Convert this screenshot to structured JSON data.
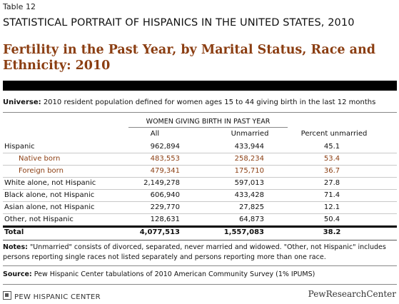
{
  "header": {
    "table_number": "Table 12",
    "super_title": "STATISTICAL PORTRAIT OF HISPANICS IN THE UNITED STATES, 2010",
    "title": "Fertility in the Past Year, by Marital Status, Race and Ethnicity: 2010"
  },
  "universe": {
    "label": "Universe:",
    "text": " 2010 resident population defined for women ages 15 to 44 giving birth in the last 12 months"
  },
  "table": {
    "group_header": "WOMEN GIVING BIRTH IN PAST YEAR",
    "columns": [
      "All",
      "Unmarried",
      "Percent unmarried"
    ],
    "rows": [
      {
        "label": "Hispanic",
        "all": "962,894",
        "unmarried": "433,944",
        "pct": "45.1"
      },
      {
        "label": "Native born",
        "all": "483,553",
        "unmarried": "258,234",
        "pct": "53.4"
      },
      {
        "label": "Foreign born",
        "all": "479,341",
        "unmarried": "175,710",
        "pct": "36.7"
      },
      {
        "label": "White alone, not Hispanic",
        "all": "2,149,278",
        "unmarried": "597,013",
        "pct": "27.8"
      },
      {
        "label": "Black alone, not Hispanic",
        "all": "606,940",
        "unmarried": "433,428",
        "pct": "71.4"
      },
      {
        "label": "Asian alone, not Hispanic",
        "all": "229,770",
        "unmarried": "27,825",
        "pct": "12.1"
      },
      {
        "label": "Other, not Hispanic",
        "all": "128,631",
        "unmarried": "64,873",
        "pct": "50.4"
      }
    ],
    "total": {
      "label": "Total",
      "all": "4,077,513",
      "unmarried": "1,557,083",
      "pct": "38.2"
    }
  },
  "notes": {
    "label": "Notes:",
    "text": " \"Unmarried\" consists of divorced, separated, never married and widowed. \"Other, not Hispanic\" includes persons reporting single races not listed separately and persons reporting more than one race."
  },
  "source": {
    "label": "Source:",
    "text": " Pew Hispanic Center tabulations of 2010 American Community Survey (1% IPUMS)"
  },
  "footer": {
    "left_logo": "PEW HISPANIC CENTER",
    "right_logo": "PewResearchCenter"
  },
  "colors": {
    "title": "#8b3e12",
    "indented_rows": "#8b3e12",
    "bar": "#000000"
  }
}
